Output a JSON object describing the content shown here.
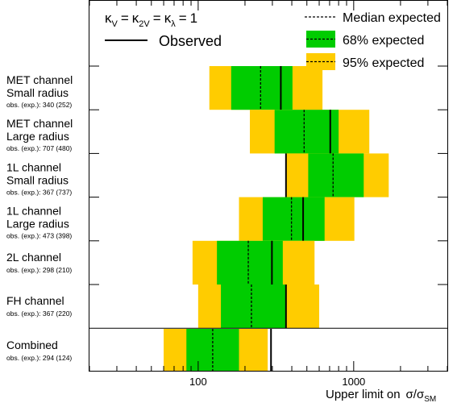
{
  "chart_data": {
    "type": "limit_plot",
    "x_axis": {
      "label_prefix": "Upper limit on",
      "label_symbol": "σ/σ",
      "label_subscript": "SM",
      "scale": "log",
      "range": [
        20,
        4000
      ],
      "ticks": [
        {
          "value": 100,
          "label": "100"
        },
        {
          "value": 1000,
          "label": "1000"
        }
      ]
    },
    "legend": {
      "placement": "top",
      "coupling_text": "κV = κ2V = κλ = 1",
      "coupling_parts": {
        "k": "κ",
        "v": "V",
        "two_v": "2V",
        "lambda": "λ",
        "eq": "=",
        "value": "1"
      },
      "observed": "Observed",
      "median": "Median expected",
      "band68": "68% expected",
      "band95": "95% expected"
    },
    "colors": {
      "band68": "#00cc00",
      "band95": "#ffcc00",
      "line": "#000000"
    },
    "channels": [
      {
        "line1": "MET channel",
        "line2": "Small radius",
        "obs_text": "obs. (exp.): 340 (252)",
        "observed": 340,
        "median": 252,
        "band68": [
          163,
          404
        ],
        "band95": [
          118,
          630
        ]
      },
      {
        "line1": "MET channel",
        "line2": "Large radius",
        "obs_text": "obs. (exp.): 707 (480)",
        "observed": 707,
        "median": 480,
        "band68": [
          310,
          800
        ],
        "band95": [
          215,
          1260
        ]
      },
      {
        "line1": "1L channel",
        "line2": "Small radius",
        "obs_text": "obs. (exp.): 367 (737)",
        "observed": 367,
        "median": 737,
        "band68": [
          510,
          1160
        ],
        "band95": [
          370,
          1680
        ]
      },
      {
        "line1": "1L channel",
        "line2": "Large radius",
        "obs_text": "obs. (exp.): 473 (398)",
        "observed": 473,
        "median": 398,
        "band68": [
          260,
          650
        ],
        "band95": [
          183,
          1010
        ]
      },
      {
        "line1": "2L channel",
        "line2": "",
        "obs_text": "obs. (exp.): 298 (210)",
        "observed": 298,
        "median": 210,
        "band68": [
          132,
          350
        ],
        "band95": [
          92,
          560
        ]
      },
      {
        "line1": "FH channel",
        "line2": "",
        "obs_text": "obs. (exp.): 367 (220)",
        "observed": 367,
        "median": 220,
        "band68": [
          140,
          365
        ],
        "band95": [
          100,
          600
        ]
      },
      {
        "line1": "Combined",
        "line2": "",
        "obs_text": "obs. (exp.): 294 (124)",
        "observed": 294,
        "median": 124,
        "band68": [
          84,
          183
        ],
        "band95": [
          60,
          280
        ]
      }
    ]
  }
}
